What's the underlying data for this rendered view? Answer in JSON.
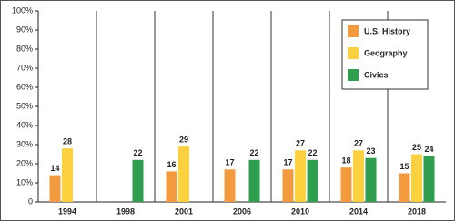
{
  "chart_data": {
    "type": "bar",
    "categories": [
      "1994",
      "1998",
      "2001",
      "2006",
      "2010",
      "2014",
      "2018"
    ],
    "series": [
      {
        "name": "U.S. History",
        "color": "#f39a3e",
        "values": [
          14,
          null,
          16,
          17,
          17,
          18,
          15
        ]
      },
      {
        "name": "Geography",
        "color": "#fcd13f",
        "values": [
          28,
          null,
          29,
          null,
          27,
          27,
          25
        ]
      },
      {
        "name": "Civics",
        "color": "#2f9e4f",
        "values": [
          null,
          22,
          null,
          22,
          22,
          23,
          24
        ]
      }
    ],
    "ylim": [
      0,
      100
    ],
    "yticks": [
      {
        "value": 0,
        "label": "0"
      },
      {
        "value": 10,
        "label": "10%"
      },
      {
        "value": 20,
        "label": "20%"
      },
      {
        "value": 30,
        "label": "30%"
      },
      {
        "value": 40,
        "label": "40%"
      },
      {
        "value": 50,
        "label": "50%"
      },
      {
        "value": 60,
        "label": "60%"
      },
      {
        "value": 70,
        "label": "70%"
      },
      {
        "value": 80,
        "label": "80%"
      },
      {
        "value": 90,
        "label": "90%"
      },
      {
        "value": 100,
        "label": "100%"
      }
    ],
    "legend": "upper right"
  }
}
